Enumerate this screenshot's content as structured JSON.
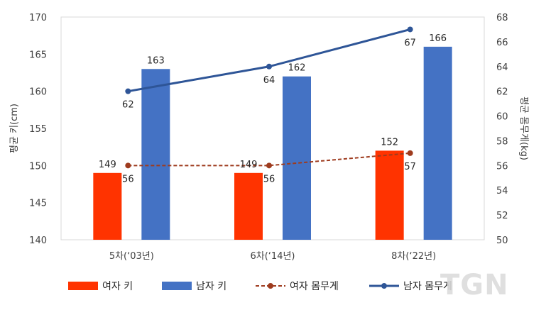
{
  "chart_data": {
    "type": "bar",
    "categories": [
      "5차(‘03년)",
      "6차(‘14년)",
      "8차(‘22년)"
    ],
    "series": [
      {
        "name": "여자 키",
        "type": "bar",
        "axis": "left",
        "color": "#FF3300",
        "values": [
          149,
          149,
          152
        ],
        "labels": [
          "149",
          "149",
          "152"
        ]
      },
      {
        "name": "남자 키",
        "type": "bar",
        "axis": "left",
        "color": "#4472C4",
        "values": [
          163,
          162,
          166
        ],
        "labels": [
          "163",
          "162",
          "166"
        ]
      },
      {
        "name": "여자 몸무게",
        "type": "line",
        "style": "dashed",
        "axis": "right",
        "color": "#9E3B1E",
        "values": [
          56,
          56,
          57
        ],
        "labels": [
          "56",
          "56",
          "57"
        ]
      },
      {
        "name": "남자 몸무게",
        "type": "line",
        "style": "solid",
        "axis": "right",
        "color": "#2E5597",
        "values": [
          62,
          64,
          67
        ],
        "labels": [
          "62",
          "64",
          "67"
        ]
      }
    ],
    "ylabel": "평균 키(cm)",
    "y2label": "평균 몸무게(kg)",
    "ylim": [
      140,
      170
    ],
    "yticks": [
      "140",
      "145",
      "150",
      "155",
      "160",
      "165",
      "170"
    ],
    "y2lim": [
      50,
      68
    ],
    "y2ticks": [
      "50",
      "52",
      "54",
      "56",
      "58",
      "60",
      "62",
      "64",
      "66",
      "68"
    ],
    "grid": false,
    "legend": "bottom"
  },
  "watermark": "TGN"
}
